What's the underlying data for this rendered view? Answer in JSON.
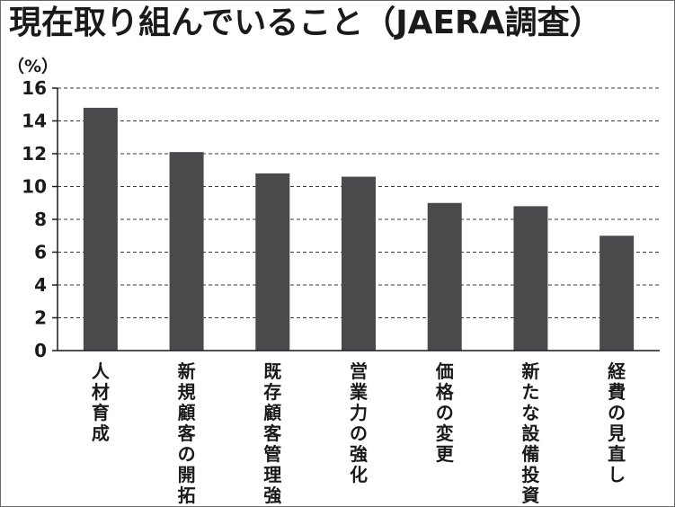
{
  "chart_data": {
    "type": "bar",
    "title": "現在取り組んでいること（JAERA調査）",
    "ylabel": "（%）",
    "xlabel": "",
    "ylim": [
      0,
      16
    ],
    "yticks": [
      0,
      2,
      4,
      6,
      8,
      10,
      12,
      14,
      16
    ],
    "grid": true,
    "categories": [
      "人材育成",
      "新規顧客の開拓",
      "既存顧客管理強化",
      "営業力の強化",
      "価格の変更",
      "新たな設備投資",
      "経費の見直し"
    ],
    "values": [
      14.8,
      12.1,
      10.8,
      10.6,
      9.0,
      8.8,
      7.0
    ],
    "bar_color": "#4a4a4d"
  }
}
